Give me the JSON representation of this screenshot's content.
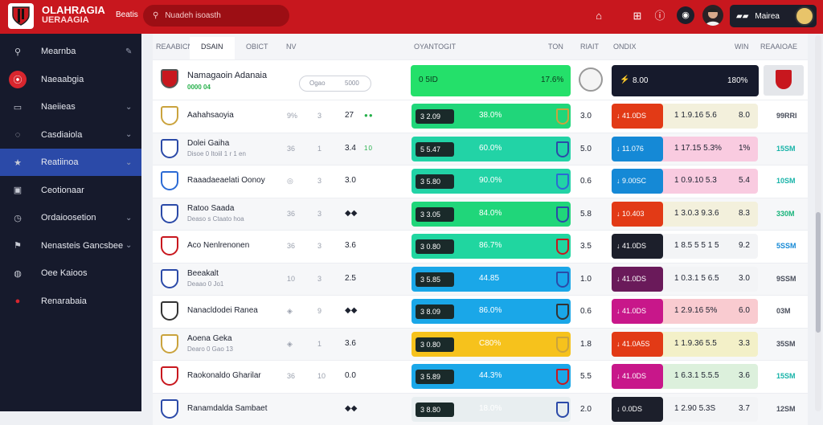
{
  "brand": {
    "line1": "OLAHRAGIA",
    "line2": "UERAAGIA"
  },
  "topbar": {
    "link": "Beatis",
    "search_placeholder": "Nuadeh isoasth",
    "account_label": "Mairea"
  },
  "sidebar": {
    "items": [
      {
        "label": "Mearnba",
        "icon": "search-icon",
        "chevron": "✎"
      },
      {
        "label": "Naeaabgia",
        "icon": "record-icon",
        "chevron": ""
      },
      {
        "label": "Naeiieas",
        "icon": "monitor-icon",
        "chevron": "⌄"
      },
      {
        "label": "Casdiaiola",
        "icon": "globe-icon",
        "chevron": "⌄"
      },
      {
        "label": "Reatiinoa",
        "icon": "star-icon",
        "chevron": "⌄",
        "active": true
      },
      {
        "label": "Ceotionaar",
        "icon": "card-icon",
        "chevron": ""
      },
      {
        "label": "Ordaioosetion",
        "icon": "clock-icon",
        "chevron": "⌄"
      },
      {
        "label": "Nenasteis Gancsbee",
        "icon": "flag-icon",
        "chevron": "⌄"
      },
      {
        "label": "Oee Kaioos",
        "icon": "circle-icon",
        "chevron": ""
      },
      {
        "label": "Renarabaia",
        "icon": "pin-icon",
        "chevron": ""
      }
    ]
  },
  "tabs": [
    "REAABICN",
    "DSAIN",
    "OBICT",
    "NV"
  ],
  "headers": {
    "h1": "OYANTOGIT",
    "h2": "TON",
    "h3": "RIAIT",
    "h4": "ONDIX",
    "h5": "WIN",
    "h6": "REAAIOAE"
  },
  "featured": {
    "name": "Namagaoin Adanaia",
    "sub": "0000 04",
    "input_placeholder": "Ogao",
    "input_value": "5000",
    "pill": "0 5ID",
    "pct": "17.6%",
    "odds": "8.00",
    "odds_right": "180%"
  },
  "rows": [
    {
      "name": "Aahahsaoyia",
      "sub": "",
      "g1": "9%",
      "g2": "3",
      "n": "27",
      "dots": "●●",
      "bar_color": "#20d67a",
      "pill": "3 2.09",
      "pct": "38.0%",
      "mval": "3.0",
      "odds_color": "#e23a16",
      "odds": "↓ 41.0DS",
      "rng": "1 1.9.16 5.6",
      "v": "8.0",
      "odds_bg": "#f3f0dc",
      "win": "99RRI",
      "win_color": "#4a4f5c",
      "crest": "#caa33d"
    },
    {
      "name": "Dolei Gaiha",
      "sub": "Disoe 0 Itoiil 1 r 1 en",
      "g1": "36",
      "g2": "1",
      "n": "3.4",
      "dots": "10",
      "bar_color": "#22d3a6",
      "pill": "5 5.47",
      "pct": "60.0%",
      "mval": "5.0",
      "odds_color": "#1589d6",
      "odds": "↓ 11.076",
      "rng": "1 17.15 5.3%",
      "v": "1%",
      "odds_bg": "#f9cbe0",
      "win": "15SM",
      "win_color": "#17b3a8",
      "crest": "#2b4aa8"
    },
    {
      "name": "Raaadaeaelati Oonoy",
      "sub": "",
      "g1": "◎",
      "g2": "3",
      "n": "3.0",
      "dots": "",
      "bar_color": "#22d3a6",
      "pill": "3 5.80",
      "pct": "90.0%",
      "mval": "0.6",
      "odds_color": "#1589d6",
      "odds": "↓ 9.00SC",
      "rng": "1 0.9.10 5.3",
      "v": "5.4",
      "odds_bg": "#f9cbe0",
      "win": "10SM",
      "win_color": "#17b3a8",
      "crest": "#2b6ad4"
    },
    {
      "name": "Ratoo Saada",
      "sub": "Deaso s Ctaato hoa",
      "g1": "36",
      "g2": "3",
      "n": "◆◆",
      "dots": "",
      "bar_color": "#20d67a",
      "pill": "3 3.05",
      "pct": "84.0%",
      "mval": "5.8",
      "odds_color": "#e23a16",
      "odds": "↓ 10.403",
      "rng": "1 3.0.3 9.3.6",
      "v": "8.3",
      "odds_bg": "#f3f0dc",
      "win": "330M",
      "win_color": "#17b37a",
      "crest": "#2b4aa8"
    },
    {
      "name": "Aco Nenlrenonen",
      "sub": "",
      "g1": "36",
      "g2": "3",
      "n": "3.6",
      "dots": "",
      "bar_color": "#20d6a0",
      "pill": "3 0.80",
      "pct": "86.7%",
      "mval": "3.5",
      "odds_color": "#1c1f2b",
      "odds": "↓ 41.0DS",
      "rng": "1 8.5 5 5 1 5",
      "v": "9.2",
      "odds_bg": "#f3f4f6",
      "win": "5SSM",
      "win_color": "#1589d6",
      "crest": "#c8171e"
    },
    {
      "name": "Beeakalt",
      "sub": "Deaao 0 Jo1",
      "g1": "10",
      "g2": "3",
      "n": "2.5",
      "dots": "",
      "bar_color": "#1aa7e8",
      "pill": "3 5.85",
      "pct": "44.85",
      "mval": "1.0",
      "odds_color": "#6a1a5a",
      "odds": "↓ 41.0DS",
      "rng": "1 0.3.1 5 6.5",
      "v": "3.0",
      "odds_bg": "#f3f4f6",
      "win": "9SSM",
      "win_color": "#4a4f5c",
      "crest": "#2b4aa8"
    },
    {
      "name": "Nanacldodei Ranea",
      "sub": "",
      "g1": "◈",
      "g2": "9",
      "n": "◆◆",
      "dots": "",
      "bar_color": "#1aa7e8",
      "pill": "3 8.09",
      "pct": "86.0%",
      "mval": "0.6",
      "odds_color": "#c8178a",
      "odds": "↓ 41.0DS",
      "rng": "1 2.9.16 5%",
      "v": "6.0",
      "odds_bg": "#f9cbd0",
      "win": "03M",
      "win_color": "#4a4f5c",
      "crest": "#333"
    },
    {
      "name": "Aoena Geka",
      "sub": "Dearo 0 Gao 13",
      "g1": "◈",
      "g2": "1",
      "n": "3.6",
      "dots": "",
      "bar_color": "#f6c21c",
      "pill": "3 0.80",
      "pct": "C80%",
      "mval": "1.8",
      "odds_color": "#e23a16",
      "odds": "↓ 41.0A5S",
      "rng": "1 1.9.36 5.5",
      "v": "3.3",
      "odds_bg": "#f3f0c8",
      "win": "35SM",
      "win_color": "#4a4f5c",
      "crest": "#caa33d"
    },
    {
      "name": "Raokonaldo Gharilar",
      "sub": "",
      "g1": "36",
      "g2": "10",
      "n": "0.0",
      "dots": "",
      "bar_color": "#1aa7e8",
      "pill": "3 5.89",
      "pct": "44.3%",
      "mval": "5.5",
      "odds_color": "#c8178a",
      "odds": "↓ 41.0DS",
      "rng": "1 6.3.1 5.5.5",
      "v": "3.6",
      "odds_bg": "#dcf0dc",
      "win": "15SM",
      "win_color": "#17b3a8",
      "crest": "#c8171e"
    },
    {
      "name": "Ranamdalda Sambaet",
      "sub": "",
      "g1": "",
      "g2": "",
      "n": "◆◆",
      "dots": "",
      "bar_color": "#e8eef0",
      "pill": "3 8.80",
      "pct": "18.0%",
      "mval": "2.0",
      "odds_color": "#1c1f2b",
      "odds": "↓ 0.0DS",
      "rng": "1 2.90 5.3S",
      "v": "3.7",
      "odds_bg": "#f3f4f6",
      "win": "12SM",
      "win_color": "#4a4f5c",
      "crest": "#2b4aa8"
    }
  ]
}
